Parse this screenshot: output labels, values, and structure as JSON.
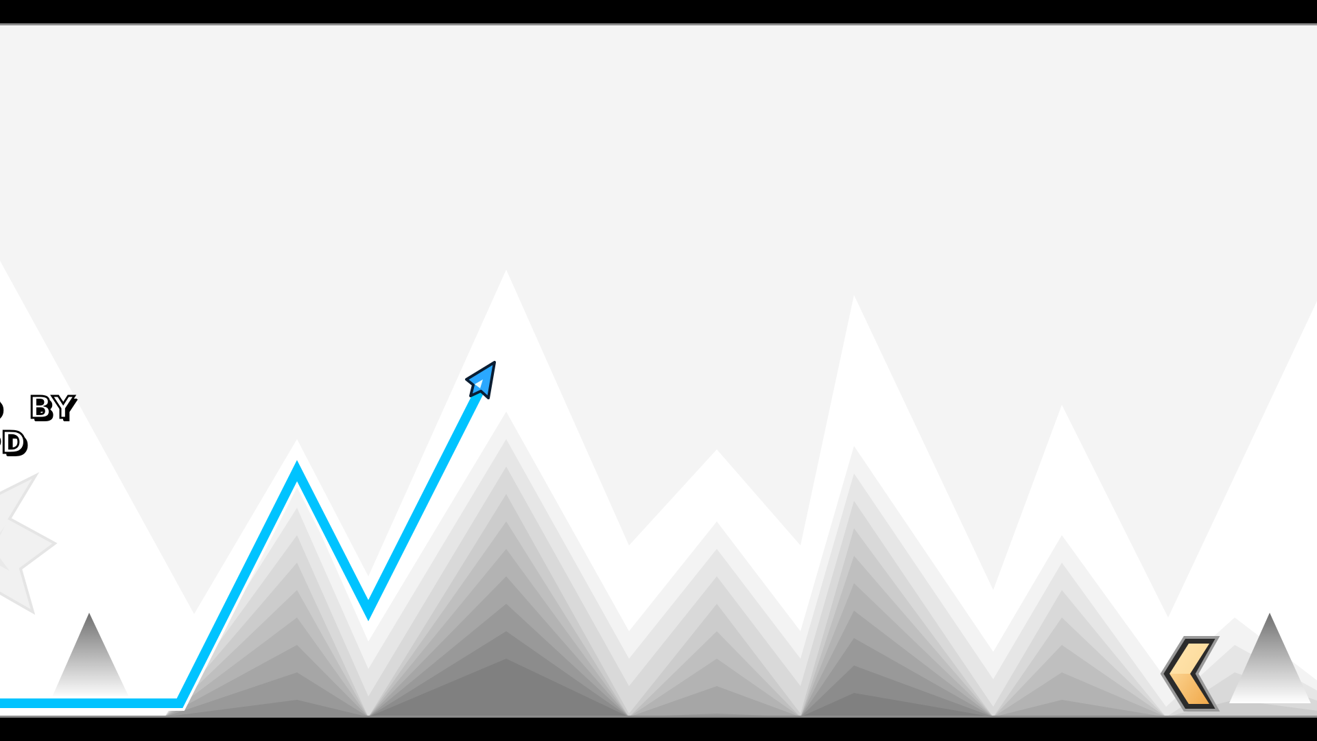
{
  "game": {
    "credit_line_1": "D  BY",
    "credit_line_2": "PD",
    "mode": "wave",
    "colors": {
      "wave_trail": "#00c3ff",
      "wave_icon": "#2aa8ff",
      "letterbox": "#000000",
      "background_light": "#ffffff",
      "background_dark": "#2a2a2a",
      "speed_portal": "#ffc070"
    },
    "icons": {
      "player": "wave-arrow-icon",
      "decoration": "star-saw-icon",
      "portal": "speed-portal-chevron-icon",
      "hazard": "spike-icon"
    }
  }
}
